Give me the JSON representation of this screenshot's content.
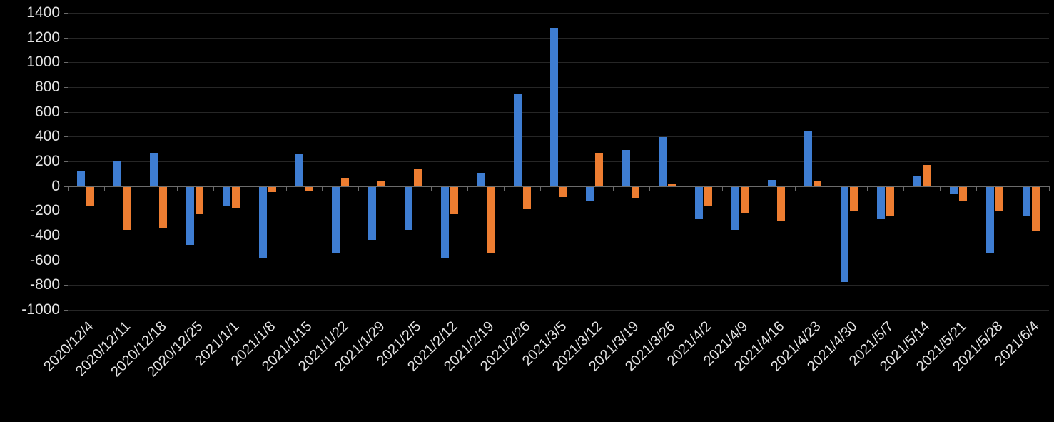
{
  "chart_data": {
    "type": "bar",
    "title": "",
    "xlabel": "",
    "ylabel": "",
    "legend": "none",
    "grid": true,
    "background_color": "#000000",
    "gridline_color": "#262626",
    "axis_color": "#6b6b6b",
    "label_color": "#e3e3e3",
    "ylim": [
      -1000,
      1400
    ],
    "y_ticks": [
      1400,
      1200,
      1000,
      800,
      600,
      400,
      200,
      0,
      -200,
      -400,
      -600,
      -800,
      -1000
    ],
    "categories": [
      "2020/12/4",
      "2020/12/11",
      "2020/12/18",
      "2020/12/25",
      "2021/1/1",
      "2021/1/8",
      "2021/1/15",
      "2021/1/22",
      "2021/1/29",
      "2021/2/5",
      "2021/2/12",
      "2021/2/19",
      "2021/2/26",
      "2021/3/5",
      "2021/3/12",
      "2021/3/19",
      "2021/3/26",
      "2021/4/2",
      "2021/4/9",
      "2021/4/16",
      "2021/4/23",
      "2021/4/30",
      "2021/5/7",
      "2021/5/14",
      "2021/5/21",
      "2021/5/28",
      "2021/6/4"
    ],
    "series": [
      {
        "name": "series-1-blue",
        "color": "#3e7dd2",
        "values": [
          120,
          200,
          270,
          -470,
          -150,
          -580,
          260,
          -530,
          -430,
          -350,
          -580,
          110,
          740,
          1280,
          -110,
          295,
          395,
          -260,
          -350,
          50,
          440,
          -770,
          -260,
          80,
          -60,
          -540,
          -230
        ]
      },
      {
        "name": "series-2-orange",
        "color": "#ed7d31",
        "values": [
          -150,
          -350,
          -330,
          -220,
          -170,
          -40,
          -30,
          70,
          40,
          140,
          -220,
          -540,
          -180,
          -80,
          270,
          -90,
          15,
          -150,
          -210,
          -280,
          40,
          -200,
          -230,
          170,
          -120,
          -200,
          -360
        ]
      }
    ]
  }
}
